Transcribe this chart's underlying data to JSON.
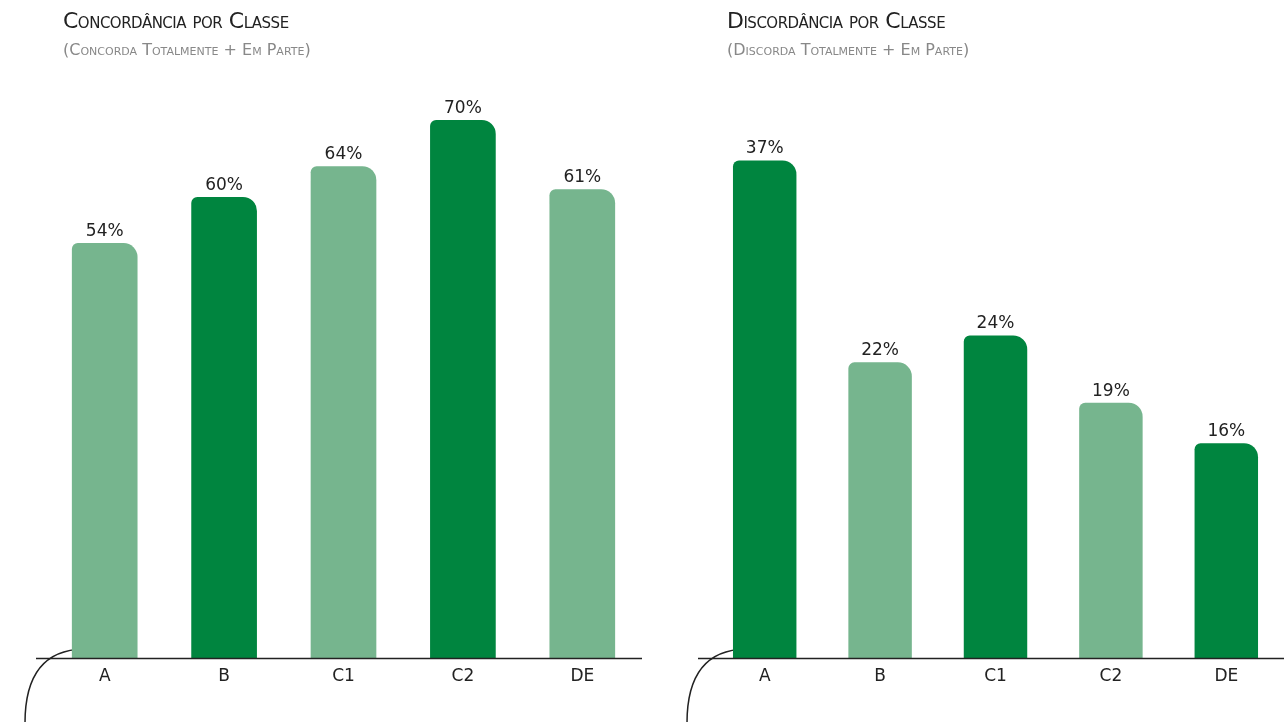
{
  "chart_data": [
    {
      "type": "bar",
      "title": "Concordância por Classe",
      "subtitle": "(Concorda Totalmente + Em Parte)",
      "categories": [
        "A",
        "B",
        "C1",
        "C2",
        "DE"
      ],
      "values": [
        54,
        60,
        64,
        70,
        61
      ],
      "colors": [
        "#76b58e",
        "#00853f",
        "#76b58e",
        "#00853f",
        "#76b58e"
      ],
      "value_labels": [
        "54%",
        "60%",
        "64%",
        "70%",
        "61%"
      ],
      "tick_labels": "x",
      "grid": false,
      "legend": false
    },
    {
      "type": "bar",
      "title": "Discordância por Classe",
      "subtitle": "(Discorda Totalmente + Em Parte)",
      "categories": [
        "A",
        "B",
        "C1",
        "C2",
        "DE"
      ],
      "values": [
        37,
        22,
        24,
        19,
        16
      ],
      "colors": [
        "#00853f",
        "#76b58e",
        "#00853f",
        "#76b58e",
        "#00853f"
      ],
      "value_labels": [
        "37%",
        "22%",
        "24%",
        "19%",
        "16%"
      ],
      "tick_labels": "x",
      "grid": false,
      "legend": false
    }
  ]
}
